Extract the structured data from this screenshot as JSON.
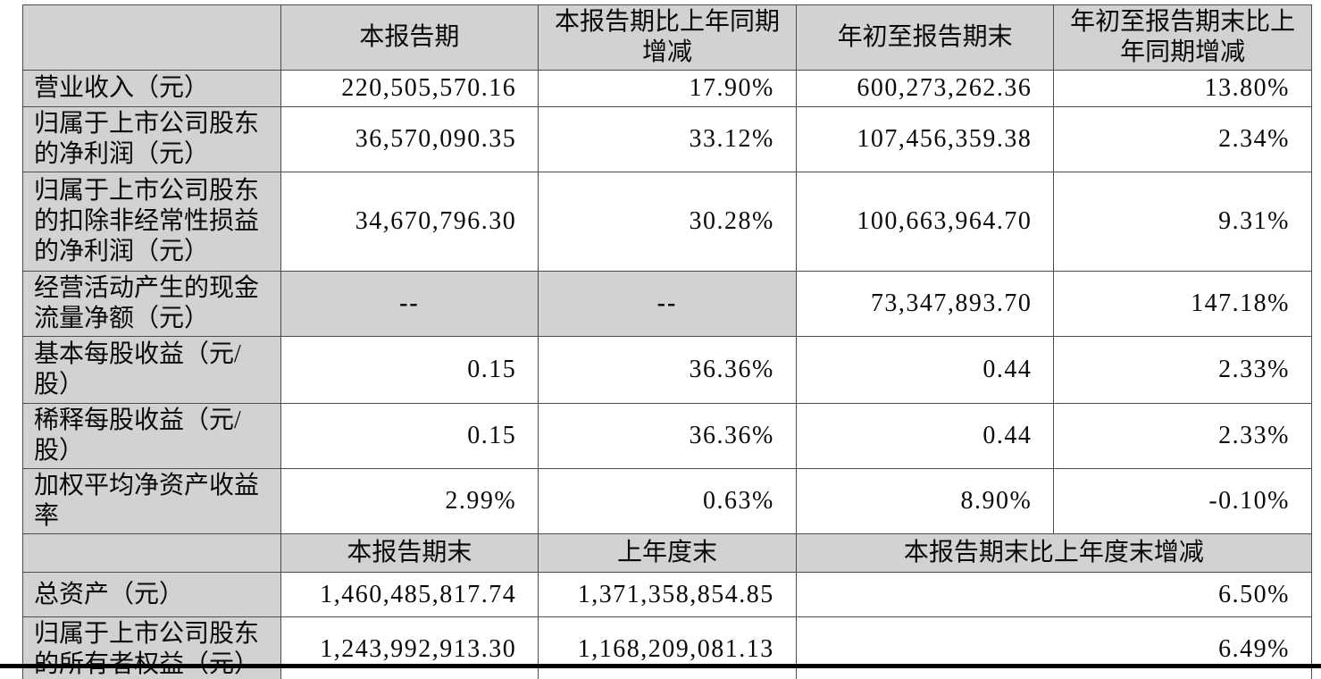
{
  "colors": {
    "cell_fill_gray": "#d2d2d2",
    "border": "#4d4d4d",
    "bottom_rule": "#000000",
    "text": "#0a0a0a"
  },
  "table": {
    "header_row_1": {
      "cells": [
        {
          "text": ""
        },
        {
          "text": "本报告期"
        },
        {
          "text": "本报告期比上年同期\n增减"
        },
        {
          "text": "年初至报告期末"
        },
        {
          "text": "年初至报告期末比上\n年同期增减"
        }
      ]
    },
    "body_rows_1": [
      {
        "label": "营业收入（元）",
        "values": [
          "220,505,570.16",
          "17.90%",
          "600,273,262.36",
          "13.80%"
        ]
      },
      {
        "label": "归属于上市公司股东\n的净利润（元）",
        "values": [
          "36,570,090.35",
          "33.12%",
          "107,456,359.38",
          "2.34%"
        ]
      },
      {
        "label": "归属于上市公司股东\n的扣除非经常性损益\n的净利润（元）",
        "values": [
          "34,670,796.30",
          "30.28%",
          "100,663,964.70",
          "9.31%"
        ]
      },
      {
        "label": "经营活动产生的现金\n流量净额（元）",
        "values": [
          "--",
          "--",
          "73,347,893.70",
          "147.18%"
        ],
        "dash_cols": [
          0,
          1
        ]
      },
      {
        "label": "基本每股收益（元/\n股）",
        "values": [
          "0.15",
          "36.36%",
          "0.44",
          "2.33%"
        ]
      },
      {
        "label": "稀释每股收益（元/\n股）",
        "values": [
          "0.15",
          "36.36%",
          "0.44",
          "2.33%"
        ]
      },
      {
        "label": "加权平均净资产收益\n率",
        "values": [
          "2.99%",
          "0.63%",
          "8.90%",
          "-0.10%"
        ]
      }
    ],
    "header_row_2": {
      "cells": [
        {
          "text": ""
        },
        {
          "text": "本报告期末"
        },
        {
          "text": "上年度末"
        },
        {
          "text": "本报告期末比上年度末增减",
          "colspan": 2
        }
      ]
    },
    "body_rows_2": [
      {
        "label": "总资产（元）",
        "values": [
          "1,460,485,817.74",
          "1,371,358,854.85"
        ],
        "merged_value": "6.50%"
      },
      {
        "label": "归属于上市公司股东\n的所有者权益（元）",
        "values": [
          "1,243,992,913.30",
          "1,168,209,081.13"
        ],
        "merged_value": "6.49%"
      }
    ]
  }
}
